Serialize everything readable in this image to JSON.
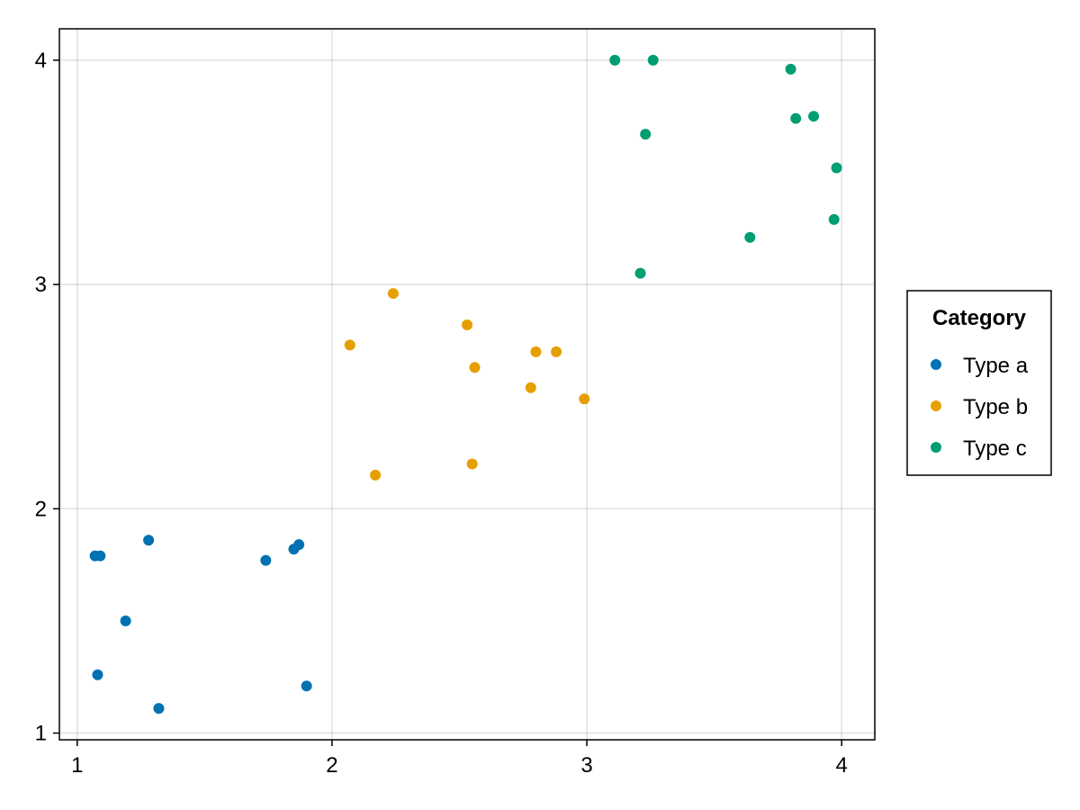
{
  "chart_data": {
    "type": "scatter",
    "title": "",
    "xlabel": "",
    "ylabel": "",
    "xlim": [
      0.93,
      4.13
    ],
    "ylim": [
      0.97,
      4.14
    ],
    "xticks": [
      1,
      2,
      3,
      4
    ],
    "yticks": [
      1,
      2,
      3,
      4
    ],
    "grid": true,
    "legend": {
      "title": "Category",
      "placement": "right"
    },
    "series": [
      {
        "name": "Type a",
        "color": "#0072b2",
        "points": [
          [
            1.07,
            1.79
          ],
          [
            1.09,
            1.79
          ],
          [
            1.28,
            1.86
          ],
          [
            1.19,
            1.5
          ],
          [
            1.08,
            1.26
          ],
          [
            1.32,
            1.11
          ],
          [
            1.74,
            1.77
          ],
          [
            1.85,
            1.82
          ],
          [
            1.87,
            1.84
          ],
          [
            1.9,
            1.21
          ]
        ]
      },
      {
        "name": "Type b",
        "color": "#e69f00",
        "points": [
          [
            2.07,
            2.73
          ],
          [
            2.24,
            2.96
          ],
          [
            2.53,
            2.82
          ],
          [
            2.56,
            2.63
          ],
          [
            2.17,
            2.15
          ],
          [
            2.55,
            2.2
          ],
          [
            2.78,
            2.54
          ],
          [
            2.8,
            2.7
          ],
          [
            2.88,
            2.7
          ],
          [
            2.99,
            2.49
          ]
        ]
      },
      {
        "name": "Type c",
        "color": "#009e73",
        "points": [
          [
            3.11,
            4.0
          ],
          [
            3.26,
            4.0
          ],
          [
            3.8,
            3.96
          ],
          [
            3.82,
            3.74
          ],
          [
            3.89,
            3.75
          ],
          [
            3.23,
            3.67
          ],
          [
            3.98,
            3.52
          ],
          [
            3.97,
            3.29
          ],
          [
            3.64,
            3.21
          ],
          [
            3.21,
            3.05
          ]
        ]
      }
    ]
  }
}
